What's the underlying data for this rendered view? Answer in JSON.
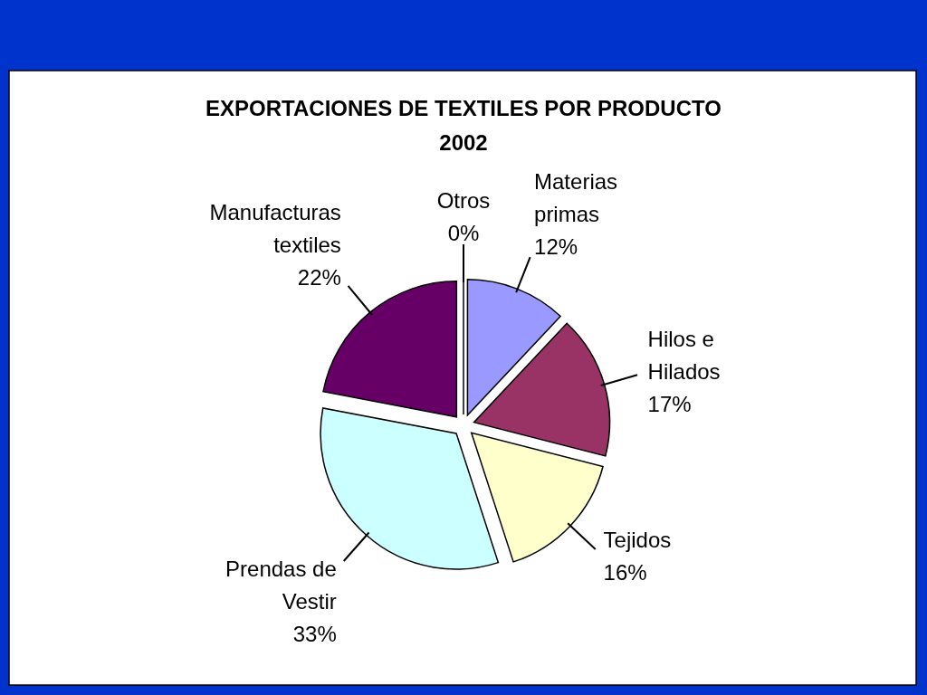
{
  "chart_data": {
    "type": "pie",
    "title": "EXPORTACIONES DE TEXTILES POR PRODUCTO",
    "subtitle": "2002",
    "categories": [
      "Materias primas",
      "Hilos e Hilados",
      "Tejidos",
      "Prendas de Vestir",
      "Manufacturas textiles",
      "Otros"
    ],
    "values": [
      12,
      17,
      16,
      33,
      22,
      0
    ],
    "value_labels": [
      "12%",
      "17%",
      "16%",
      "33%",
      "22%",
      "0%"
    ],
    "colors": [
      "#9999ff",
      "#993366",
      "#ffffcc",
      "#ccffff",
      "#660066",
      "#ff8080"
    ]
  }
}
